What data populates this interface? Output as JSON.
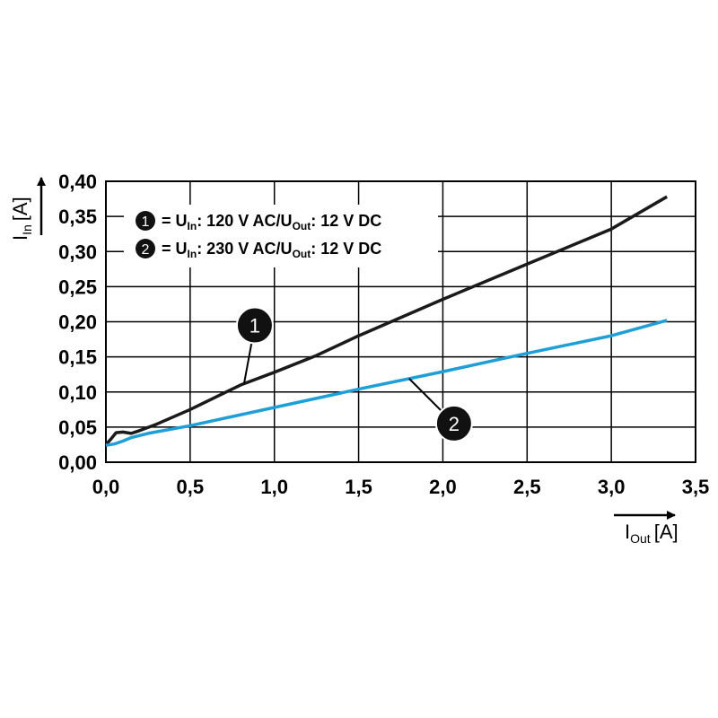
{
  "chart_data": {
    "type": "line",
    "x_axis": {
      "label_main": "I",
      "label_sub": "Out",
      "label_unit": "[A]",
      "range": [
        0,
        3.5
      ],
      "ticks": [
        "0,0",
        "0,5",
        "1,0",
        "1,5",
        "2,0",
        "2,5",
        "3,0",
        "3,5"
      ]
    },
    "y_axis": {
      "label_main": "I",
      "label_sub": "In",
      "label_unit": "[A]",
      "range": [
        0,
        0.4
      ],
      "ticks": [
        "0,00",
        "0,05",
        "0,10",
        "0,15",
        "0,20",
        "0,25",
        "0,30",
        "0,35",
        "0,40"
      ]
    },
    "grid": true,
    "legend_placement": "top-left",
    "series": [
      {
        "marker": "1",
        "color": "#1a1a1a",
        "legend_prefix": "= U",
        "legend_sub1": "In",
        "legend_mid": ": 120 V AC/U",
        "legend_sub2": "Out",
        "legend_end": ": 12 V DC",
        "points": [
          [
            0.0,
            0.025
          ],
          [
            0.03,
            0.033
          ],
          [
            0.06,
            0.042
          ],
          [
            0.1,
            0.043
          ],
          [
            0.15,
            0.041
          ],
          [
            0.2,
            0.045
          ],
          [
            0.3,
            0.054
          ],
          [
            0.5,
            0.075
          ],
          [
            0.8,
            0.11
          ],
          [
            1.0,
            0.128
          ],
          [
            1.25,
            0.152
          ],
          [
            1.5,
            0.18
          ],
          [
            2.0,
            0.232
          ],
          [
            2.5,
            0.282
          ],
          [
            3.0,
            0.332
          ],
          [
            3.33,
            0.378
          ]
        ]
      },
      {
        "marker": "2",
        "color": "#1e9fd8",
        "legend_prefix": "= U",
        "legend_sub1": "In",
        "legend_mid": ": 230 V AC/U",
        "legend_sub2": "Out",
        "legend_end": ": 12 V DC",
        "points": [
          [
            0.0,
            0.024
          ],
          [
            0.05,
            0.026
          ],
          [
            0.1,
            0.03
          ],
          [
            0.15,
            0.035
          ],
          [
            0.25,
            0.041
          ],
          [
            0.5,
            0.052
          ],
          [
            1.0,
            0.078
          ],
          [
            1.5,
            0.104
          ],
          [
            2.0,
            0.129
          ],
          [
            2.5,
            0.155
          ],
          [
            3.0,
            0.18
          ],
          [
            3.33,
            0.202
          ]
        ]
      }
    ],
    "callouts": [
      {
        "label": "1",
        "series": 0,
        "at_x": 0.82
      },
      {
        "label": "2",
        "series": 1,
        "at_x": 1.8
      }
    ]
  }
}
